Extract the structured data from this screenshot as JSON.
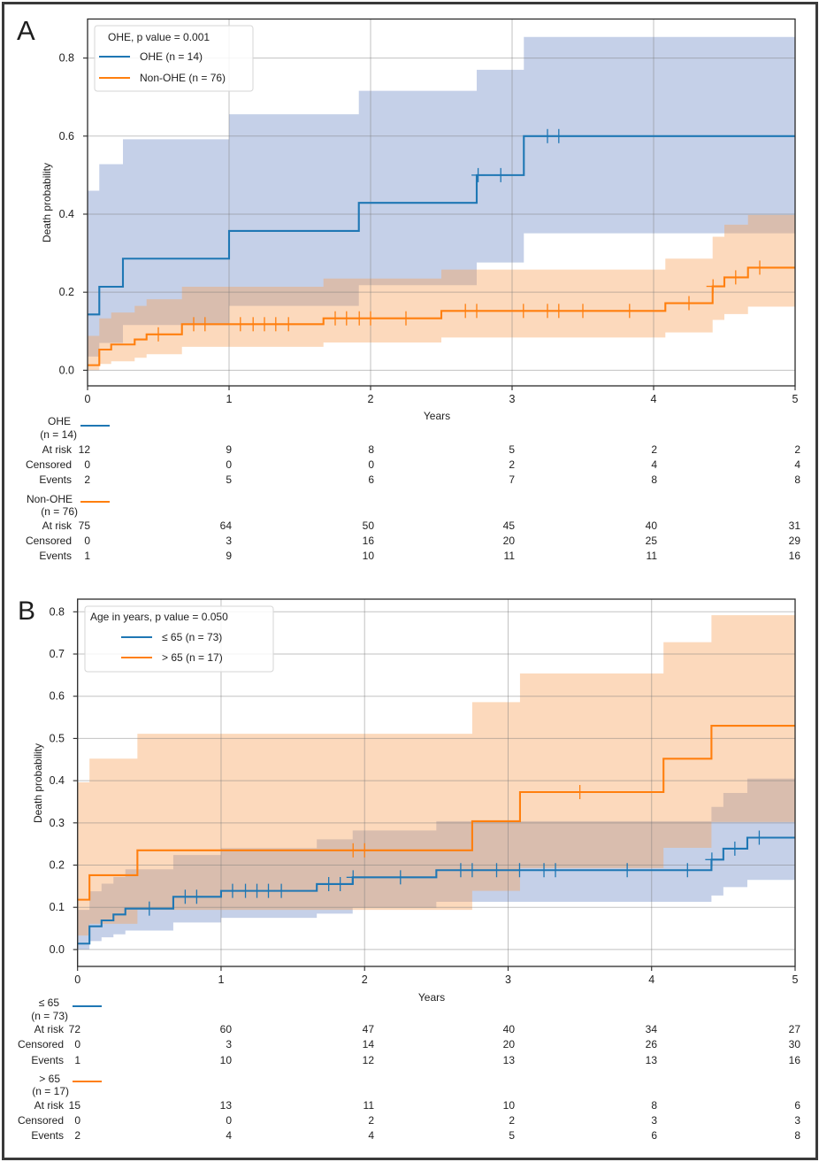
{
  "chart_data": [
    {
      "panel_label": "A",
      "type": "line",
      "subtype": "step cumulative incidence with confidence bands",
      "title": "",
      "xlabel": "Years",
      "ylabel": "Death probability",
      "xlim": [
        0,
        5
      ],
      "ylim": [
        -0.04,
        0.9
      ],
      "xticks": [
        0,
        1,
        2,
        3,
        4,
        5
      ],
      "xtick_labels": [
        "0",
        "1",
        "2",
        "3",
        "4",
        "5"
      ],
      "yticks": [
        0.0,
        0.2,
        0.4,
        0.6,
        0.8
      ],
      "ytick_labels": [
        "0.0",
        "0.2",
        "0.4",
        "0.6",
        "0.8"
      ],
      "grid": true,
      "legend": {
        "title": "OHE, p value = 0.001",
        "placement": "top-left",
        "entries": [
          {
            "label": "OHE (n = 14)",
            "series": 0
          },
          {
            "label": "Non-OHE (n = 76)",
            "series": 1
          }
        ]
      },
      "series": [
        {
          "name": "OHE (n = 14)",
          "color": "#1f77b4",
          "ci_color": "#3e62b2",
          "step_times": [
            0,
            0.083,
            0.25,
            1.0,
            1.917,
            2.75,
            3.083
          ],
          "values": [
            0.143,
            0.214,
            0.286,
            0.357,
            0.429,
            0.5,
            0.6
          ],
          "censor_times": [
            2.76,
            2.92,
            3.25,
            3.33
          ],
          "ci_lower": [
            0.035,
            0.07,
            0.116,
            0.165,
            0.218,
            0.276,
            0.351
          ],
          "ci_upper": [
            0.46,
            0.528,
            0.592,
            0.656,
            0.716,
            0.77,
            0.854
          ]
        },
        {
          "name": "Non-OHE (n = 76)",
          "color": "#ff7f0e",
          "ci_color": "#f7a058",
          "step_times": [
            0,
            0.083,
            0.167,
            0.333,
            0.417,
            0.667,
            1.667,
            2.5,
            4.083,
            4.417,
            4.5,
            4.667
          ],
          "values": [
            0.013,
            0.053,
            0.066,
            0.079,
            0.092,
            0.118,
            0.133,
            0.152,
            0.172,
            0.215,
            0.238,
            0.263
          ],
          "censor_times": [
            0.5,
            0.75,
            0.83,
            1.08,
            1.17,
            1.25,
            1.33,
            1.42,
            1.75,
            1.83,
            1.92,
            2.0,
            2.25,
            2.67,
            2.75,
            3.08,
            3.25,
            3.33,
            3.5,
            3.83,
            4.25,
            4.42,
            4.58,
            4.75
          ],
          "ci_lower": [
            0.0,
            0.016,
            0.023,
            0.032,
            0.041,
            0.06,
            0.071,
            0.084,
            0.097,
            0.129,
            0.144,
            0.163
          ],
          "ci_upper": [
            0.088,
            0.133,
            0.148,
            0.165,
            0.182,
            0.214,
            0.235,
            0.258,
            0.286,
            0.342,
            0.373,
            0.398
          ]
        }
      ],
      "risk_table": {
        "groups": [
          {
            "name": "OHE",
            "n_label": "(n = 14)",
            "series": 0,
            "rows": [
              {
                "label": "At risk",
                "values": [
                  12,
                  9,
                  8,
                  5,
                  2,
                  2
                ]
              },
              {
                "label": "Censored",
                "values": [
                  0,
                  0,
                  0,
                  2,
                  4,
                  4
                ]
              },
              {
                "label": "Events",
                "values": [
                  2,
                  5,
                  6,
                  7,
                  8,
                  8
                ]
              }
            ]
          },
          {
            "name": "Non-OHE",
            "n_label": "(n = 76)",
            "series": 1,
            "rows": [
              {
                "label": "At risk",
                "values": [
                  75,
                  64,
                  50,
                  45,
                  40,
                  31
                ]
              },
              {
                "label": "Censored",
                "values": [
                  0,
                  3,
                  16,
                  20,
                  25,
                  29
                ]
              },
              {
                "label": "Events",
                "values": [
                  1,
                  9,
                  10,
                  11,
                  11,
                  16
                ]
              }
            ]
          }
        ]
      }
    },
    {
      "panel_label": "B",
      "type": "line",
      "subtype": "step cumulative incidence with confidence bands",
      "title": "",
      "xlabel": "Years",
      "ylabel": "Death probability",
      "xlim": [
        0,
        5
      ],
      "ylim": [
        -0.04,
        0.83
      ],
      "xticks": [
        0,
        1,
        2,
        3,
        4,
        5
      ],
      "xtick_labels": [
        "0",
        "1",
        "2",
        "3",
        "4",
        "5"
      ],
      "yticks": [
        0.0,
        0.1,
        0.2,
        0.3,
        0.4,
        0.5,
        0.6,
        0.7,
        0.8
      ],
      "ytick_labels": [
        "0.0",
        "0.1",
        "0.2",
        "0.3",
        "0.4",
        "0.5",
        "0.6",
        "0.7",
        "0.8"
      ],
      "grid": true,
      "legend": {
        "title": "Age in years, p value = 0.050",
        "placement": "top-left",
        "entries": [
          {
            "label": "≤ 65 (n = 73)",
            "series": 0
          },
          {
            "label": "> 65 (n = 17)",
            "series": 1
          }
        ]
      },
      "series": [
        {
          "name": "≤ 65 (n = 73)",
          "color": "#1f77b4",
          "ci_color": "#3e62b2",
          "step_times": [
            0,
            0.083,
            0.167,
            0.25,
            0.333,
            0.667,
            1.0,
            1.667,
            1.917,
            2.5,
            4.417,
            4.5,
            4.667
          ],
          "values": [
            0.014,
            0.055,
            0.069,
            0.083,
            0.097,
            0.125,
            0.139,
            0.155,
            0.171,
            0.188,
            0.213,
            0.239,
            0.265
          ],
          "censor_times": [
            0.5,
            0.75,
            0.83,
            1.08,
            1.17,
            1.25,
            1.33,
            1.42,
            1.75,
            1.83,
            1.92,
            2.25,
            2.67,
            2.75,
            2.92,
            3.08,
            3.25,
            3.33,
            3.83,
            4.25,
            4.42,
            4.58,
            4.75
          ],
          "ci_lower": [
            0.0,
            0.02,
            0.029,
            0.036,
            0.045,
            0.064,
            0.075,
            0.085,
            0.099,
            0.113,
            0.128,
            0.148,
            0.165
          ],
          "ci_upper": [
            0.094,
            0.138,
            0.156,
            0.172,
            0.19,
            0.224,
            0.24,
            0.261,
            0.282,
            0.304,
            0.338,
            0.371,
            0.405
          ]
        },
        {
          "name": "> 65 (n = 17)",
          "color": "#ff7f0e",
          "ci_color": "#f7a058",
          "step_times": [
            0,
            0.083,
            0.417,
            2.75,
            3.083,
            4.083,
            4.417
          ],
          "values": [
            0.118,
            0.176,
            0.235,
            0.304,
            0.373,
            0.452,
            0.53
          ],
          "censor_times": [
            1.92,
            2.0,
            3.5
          ],
          "ci_lower": [
            0.033,
            0.061,
            0.094,
            0.139,
            0.193,
            0.241,
            0.302
          ],
          "ci_upper": [
            0.396,
            0.452,
            0.511,
            0.586,
            0.654,
            0.728,
            0.792
          ]
        }
      ],
      "risk_table": {
        "groups": [
          {
            "name": "≤ 65",
            "n_label": "(n = 73)",
            "series": 0,
            "rows": [
              {
                "label": "At risk",
                "values": [
                  72,
                  60,
                  47,
                  40,
                  34,
                  27
                ]
              },
              {
                "label": "Censored",
                "values": [
                  0,
                  3,
                  14,
                  20,
                  26,
                  30
                ]
              },
              {
                "label": "Events",
                "values": [
                  1,
                  10,
                  12,
                  13,
                  13,
                  16
                ]
              }
            ]
          },
          {
            "name": "> 65",
            "n_label": "(n = 17)",
            "series": 1,
            "rows": [
              {
                "label": "At risk",
                "values": [
                  15,
                  13,
                  11,
                  10,
                  8,
                  6
                ]
              },
              {
                "label": "Censored",
                "values": [
                  0,
                  0,
                  2,
                  2,
                  3,
                  3
                ]
              },
              {
                "label": "Events",
                "values": [
                  2,
                  4,
                  4,
                  5,
                  6,
                  8
                ]
              }
            ]
          }
        ]
      }
    }
  ]
}
